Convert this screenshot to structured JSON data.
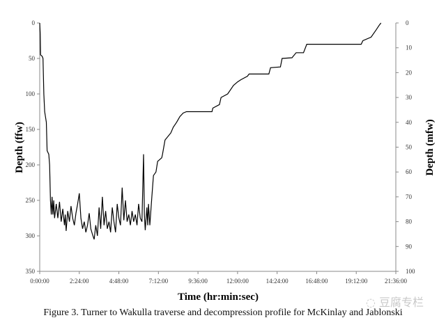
{
  "chart_data": {
    "type": "line",
    "title": "",
    "caption": "Figure 3. Turner to Wakulla traverse and decompression profile for McKinlay and Jablonski",
    "xlabel": "Time (hr:min:sec)",
    "ylabel": "Depth (ffw)",
    "y2label": "Depth (mfw)",
    "x_unit": "hours",
    "xlim": [
      0,
      21.6
    ],
    "ylim": [
      350,
      0
    ],
    "y2lim": [
      100,
      0
    ],
    "x_ticks": [
      0,
      2.4,
      4.8,
      7.2,
      9.6,
      12,
      14.4,
      16.8,
      19.2,
      21.6
    ],
    "x_tick_labels": [
      "0:00:00",
      "2:24:00",
      "4:48:00",
      "7:12:00",
      "9:36:00",
      "12:00:00",
      "14:24:00",
      "16:48:00",
      "19:12:00",
      "21:36:00"
    ],
    "y_ticks": [
      "0",
      "50",
      "100",
      "150",
      "200",
      "250",
      "300",
      "350"
    ],
    "y2_ticks": [
      "0",
      "10",
      "20",
      "30",
      "40",
      "50",
      "60",
      "70",
      "80",
      "90",
      "100"
    ],
    "grid": false,
    "line_color": "#000000",
    "series": [
      {
        "x": [
          0,
          0.03,
          0.05,
          0.15,
          0.2,
          0.25,
          0.3,
          0.4,
          0.45,
          0.55,
          0.6,
          0.65,
          0.7,
          0.75,
          0.8,
          0.85,
          0.9,
          1.0,
          1.1,
          1.2,
          1.3,
          1.4,
          1.5,
          1.55,
          1.6,
          1.7,
          1.8,
          1.9,
          2.0,
          2.1,
          2.2,
          2.3,
          2.4,
          2.5,
          2.6,
          2.7,
          2.8,
          2.9,
          3.0,
          3.1,
          3.2,
          3.3,
          3.4,
          3.5,
          3.6,
          3.7,
          3.8,
          3.9,
          4.0,
          4.1,
          4.2,
          4.3,
          4.4,
          4.5,
          4.6,
          4.7,
          4.8,
          4.9,
          5.0,
          5.1,
          5.2,
          5.3,
          5.4,
          5.5,
          5.6,
          5.7,
          5.8,
          5.9,
          6.0,
          6.1,
          6.2,
          6.3,
          6.35,
          6.4,
          6.5,
          6.55,
          6.6,
          6.68,
          6.8,
          6.9,
          7.05,
          7.15,
          7.4,
          7.45,
          7.6,
          7.95,
          8.1,
          8.3,
          8.5,
          8.7,
          8.9,
          10.45,
          10.5,
          10.9,
          11.0,
          11.4,
          11.75,
          12.0,
          12.2,
          12.6,
          12.7,
          13.9,
          14.0,
          14.6,
          14.7,
          15.3,
          15.55,
          16.0,
          16.2,
          19.5,
          19.6,
          20.1,
          20.4,
          20.6,
          20.7
        ],
        "y": [
          0,
          15,
          45,
          47,
          50,
          100,
          125,
          140,
          180,
          185,
          200,
          250,
          270,
          245,
          270,
          250,
          275,
          255,
          275,
          252,
          280,
          262,
          285,
          270,
          293,
          265,
          280,
          258,
          275,
          285,
          268,
          255,
          240,
          275,
          290,
          280,
          295,
          285,
          268,
          290,
          298,
          305,
          285,
          300,
          260,
          290,
          245,
          285,
          265,
          290,
          280,
          295,
          260,
          280,
          295,
          255,
          275,
          285,
          232,
          278,
          250,
          280,
          270,
          285,
          265,
          280,
          270,
          285,
          255,
          275,
          280,
          185,
          270,
          292,
          260,
          285,
          255,
          285,
          245,
          215,
          210,
          195,
          190,
          185,
          165,
          155,
          147,
          140,
          132,
          127,
          125,
          125,
          120,
          115,
          105,
          100,
          88,
          83,
          80,
          75,
          72,
          72,
          63,
          62,
          50,
          49,
          42,
          42,
          30,
          30,
          25,
          20,
          10,
          3,
          0
        ]
      }
    ]
  },
  "watermark": "豆腐专栏"
}
